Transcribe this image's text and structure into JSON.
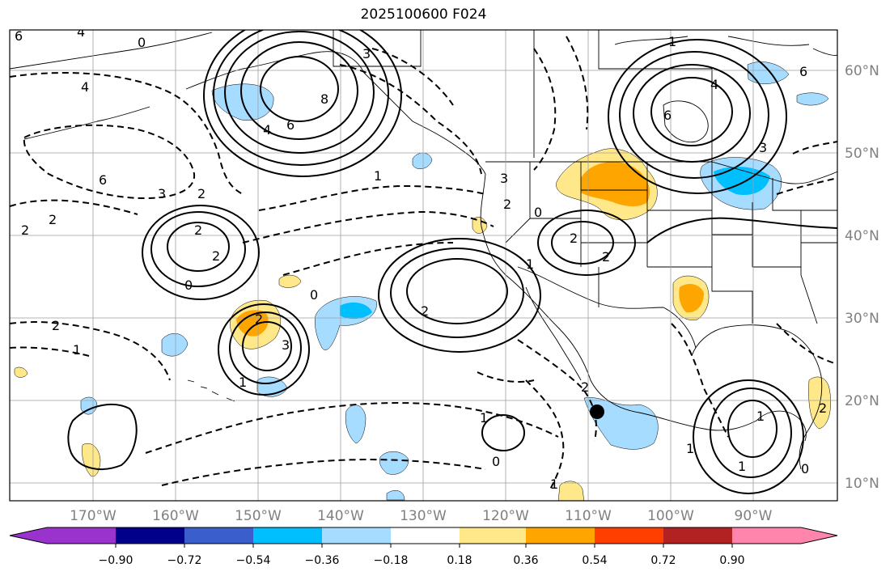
{
  "title": "2025100600 F024",
  "map": {
    "lon_ticks": [
      "170°W",
      "160°W",
      "150°W",
      "140°W",
      "130°W",
      "120°W",
      "110°W",
      "100°W",
      "90°W"
    ],
    "lat_ticks": [
      "60°N",
      "50°N",
      "40°N",
      "30°N",
      "20°N",
      "10°N"
    ],
    "contour_labels": [
      "6",
      "4",
      "3",
      "8",
      "6",
      "4",
      "2",
      "1",
      "0",
      "2",
      "4",
      "6",
      "1",
      "3",
      "4",
      "6",
      "6",
      "3",
      "2",
      "2",
      "0",
      "2",
      "2",
      "2",
      "2",
      "0",
      "1",
      "2",
      "3",
      "2",
      "2",
      "2",
      "0",
      "1",
      "1",
      "0",
      "1",
      "1",
      "0",
      "3",
      "1",
      "1",
      "1",
      "2"
    ],
    "marker_icon": "black-dot-marker",
    "colors": {
      "land_outline": "#000000",
      "grid": "#9e9e9e",
      "shade_pos_1": "#ffe88a",
      "shade_pos_2": "#ffa500",
      "shade_neg_1": "#a6dcff",
      "shade_neg_2": "#00bfff"
    }
  },
  "colorbar": {
    "tick_labels": [
      "−0.90",
      "−0.72",
      "−0.54",
      "−0.36",
      "−0.18",
      "0.18",
      "0.36",
      "0.54",
      "0.72",
      "0.90"
    ],
    "colors": [
      "#9a32cd",
      "#00008b",
      "#3a5fcd",
      "#00bfff",
      "#a6dcff",
      "#ffffff",
      "#ffe88a",
      "#ffa500",
      "#ff3f00",
      "#b22222",
      "#ff85ad"
    ]
  }
}
